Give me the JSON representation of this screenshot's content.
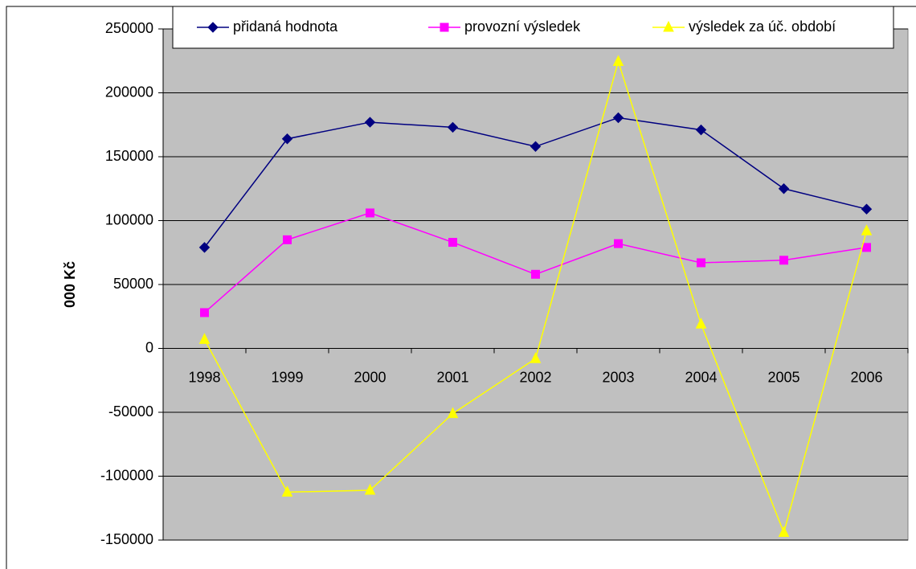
{
  "chart_data": {
    "type": "line",
    "y_label": "000 Kč",
    "categories": [
      "1998",
      "1999",
      "2000",
      "2001",
      "2002",
      "2003",
      "2004",
      "2005",
      "2006"
    ],
    "series": [
      {
        "name": "přidaná hodnota",
        "color": "#000080",
        "marker": "diamond",
        "values": [
          79000,
          164000,
          177000,
          173000,
          158000,
          180500,
          171000,
          125000,
          109000
        ]
      },
      {
        "name": "provozní výsledek",
        "color": "#ff00ff",
        "marker": "square",
        "values": [
          28000,
          85000,
          106000,
          83000,
          58000,
          82000,
          67000,
          69000,
          79000
        ]
      },
      {
        "name": "výsledek za úč. období",
        "color": "#ffff00",
        "marker": "triangle",
        "values": [
          7000,
          -112500,
          -111000,
          -51000,
          -8000,
          224500,
          19000,
          -144000,
          92000
        ]
      }
    ],
    "ylim": [
      -150000,
      250000
    ],
    "yticks": [
      -150000,
      -100000,
      -50000,
      0,
      50000,
      100000,
      150000,
      200000,
      250000
    ],
    "grid": true,
    "legend": "top"
  }
}
